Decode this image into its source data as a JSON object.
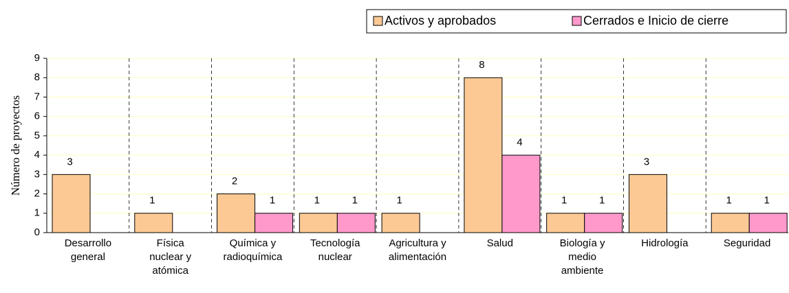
{
  "chart_data": {
    "type": "bar",
    "y_label": "Número de proyectos",
    "categories": [
      [
        "Desarrollo",
        "general"
      ],
      [
        "Física",
        "nuclear y",
        "atómica"
      ],
      [
        "Química y",
        "radioquímica"
      ],
      [
        "Tecnología",
        "nuclear"
      ],
      [
        "Agricultura y",
        "alimentación"
      ],
      [
        "Salud"
      ],
      [
        "Biología y",
        "medio",
        "ambiente"
      ],
      [
        "Hidrología"
      ],
      [
        "Seguridad"
      ]
    ],
    "series": [
      {
        "name": "Activos y aprobados",
        "color": "#fcc995",
        "values": [
          3,
          1,
          2,
          1,
          1,
          8,
          1,
          3,
          1
        ]
      },
      {
        "name": "Cerrados e Inicio de cierre",
        "color": "#ff99cc",
        "values": [
          null,
          null,
          1,
          1,
          null,
          4,
          1,
          null,
          1
        ]
      }
    ],
    "ylim": [
      0,
      9
    ],
    "yticks": [
      0,
      1,
      2,
      3,
      4,
      5,
      6,
      7,
      8,
      9
    ],
    "grid": true,
    "legend": "top-right"
  }
}
